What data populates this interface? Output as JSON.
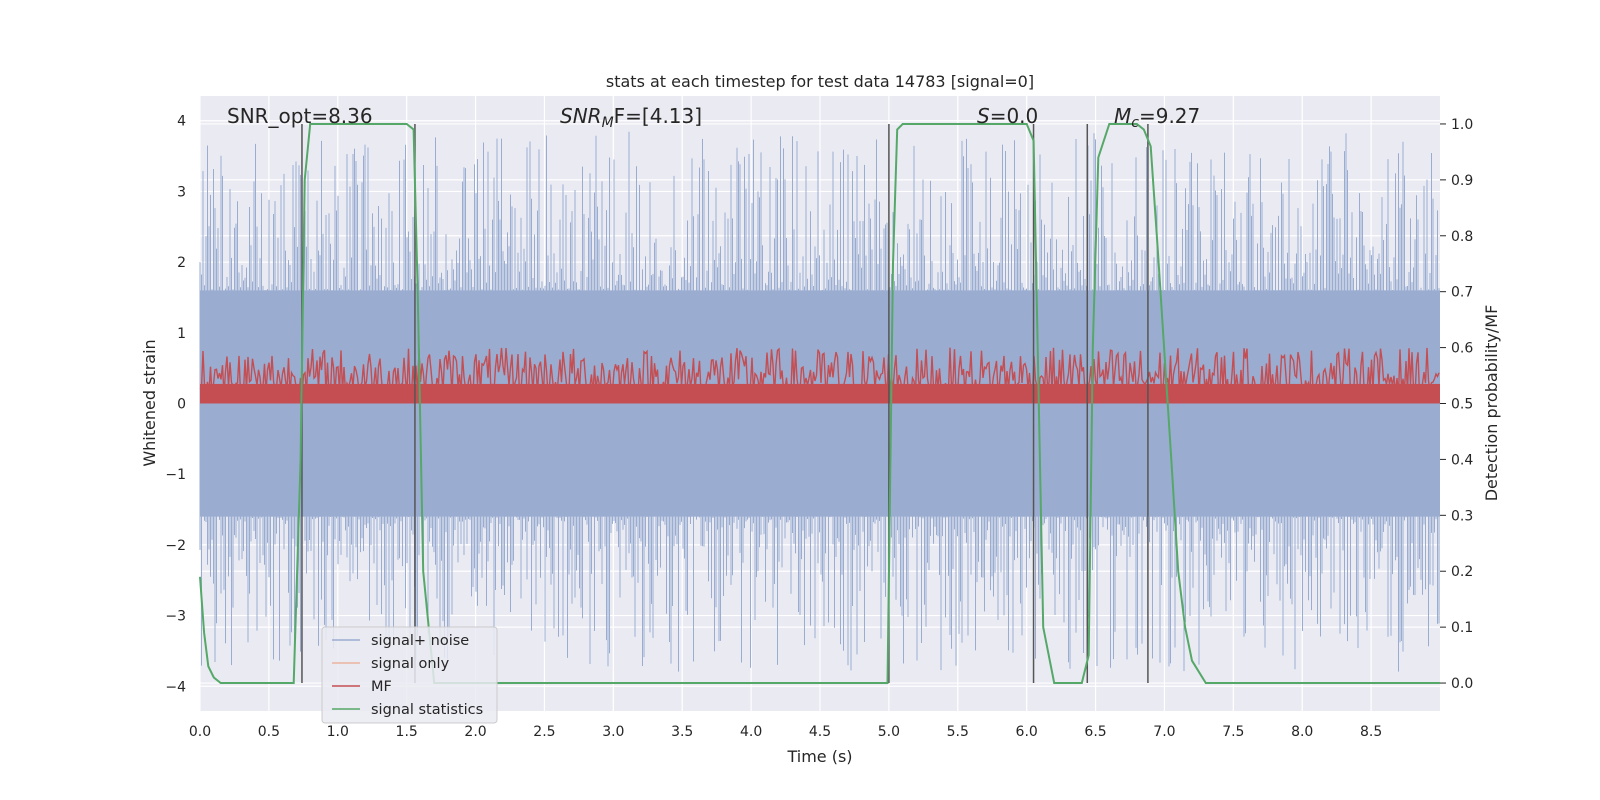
{
  "chart_data": {
    "type": "line",
    "title": "stats at each timestep for test data 14783 [signal=0]",
    "xlabel": "Time (s)",
    "ylabel": "Whitened strain",
    "y2label": "Detection probability/MF",
    "xlim": [
      0,
      9.0
    ],
    "ylim": [
      -4.35,
      4.35
    ],
    "y2lim": [
      -0.05,
      1.05
    ],
    "xticks": [
      0.0,
      0.5,
      1.0,
      1.5,
      2.0,
      2.5,
      3.0,
      3.5,
      4.0,
      4.5,
      5.0,
      5.5,
      6.0,
      6.5,
      7.0,
      7.5,
      8.0,
      8.5
    ],
    "xtick_labels": [
      "0.0",
      "0.5",
      "1.0",
      "1.5",
      "2.0",
      "2.5",
      "3.0",
      "3.5",
      "4.0",
      "4.5",
      "5.0",
      "5.5",
      "6.0",
      "6.5",
      "7.0",
      "7.5",
      "8.0",
      "8.5"
    ],
    "yticks": [
      -4,
      -3,
      -2,
      -1,
      0,
      1,
      2,
      3,
      4
    ],
    "ytick_labels": [
      "−4",
      "−3",
      "−2",
      "−1",
      "0",
      "1",
      "2",
      "3",
      "4"
    ],
    "y2ticks": [
      0.0,
      0.1,
      0.2,
      0.3,
      0.4,
      0.5,
      0.6,
      0.7,
      0.8,
      0.9,
      1.0
    ],
    "y2tick_labels": [
      "0.0",
      "0.1",
      "0.2",
      "0.3",
      "0.4",
      "0.5",
      "0.6",
      "0.7",
      "0.8",
      "0.9",
      "1.0"
    ],
    "grid": true,
    "annotations": {
      "snr_opt": "SNR_opt=8.36",
      "snr_mf_base": "SNR",
      "snr_mf_sub": "M",
      "snr_mf_rest": "F=[4.13]",
      "s_base": "S",
      "s_rest": "=0.0",
      "mc_base": "M",
      "mc_sub": "c",
      "mc_rest": "=9.27"
    },
    "vertical_markers": [
      0.74,
      1.56,
      5.0,
      6.05,
      6.44,
      6.88
    ],
    "series": [
      {
        "name": "signal+ noise",
        "axis": "left",
        "color": "#9aadd1",
        "band": {
          "core_low": -1.6,
          "core_high": 1.6,
          "peak_low": -3.8,
          "peak_high": 3.85
        }
      },
      {
        "name": "signal only",
        "axis": "left",
        "color": "#eab39c",
        "values_const": 0
      },
      {
        "name": "MF",
        "axis": "right",
        "color": "#c44e52",
        "band": {
          "base": 0.5,
          "high": 0.555,
          "peak": 0.6
        }
      },
      {
        "name": "signal statistics",
        "axis": "right",
        "color": "#55a868",
        "x": [
          0.0,
          0.03,
          0.06,
          0.1,
          0.15,
          0.2,
          0.3,
          0.5,
          0.68,
          0.73,
          0.76,
          0.8,
          0.9,
          1.2,
          1.5,
          1.55,
          1.58,
          1.62,
          1.7,
          2.0,
          3.0,
          4.0,
          4.9,
          4.99,
          5.03,
          5.06,
          5.1,
          5.3,
          5.6,
          5.9,
          6.0,
          6.05,
          6.08,
          6.12,
          6.2,
          6.25,
          6.4,
          6.45,
          6.48,
          6.52,
          6.6,
          6.7,
          6.8,
          6.85,
          6.9,
          6.95,
          7.05,
          7.1,
          7.15,
          7.2,
          7.3,
          7.5,
          8.0,
          8.5,
          9.0
        ],
        "y": [
          0.19,
          0.09,
          0.03,
          0.01,
          0.0,
          0.0,
          0.0,
          0.0,
          0.0,
          0.4,
          0.9,
          1.0,
          1.0,
          1.0,
          1.0,
          0.99,
          0.7,
          0.2,
          0.0,
          0.0,
          0.0,
          0.0,
          0.0,
          0.0,
          0.75,
          0.99,
          1.0,
          1.0,
          1.0,
          1.0,
          1.0,
          0.97,
          0.6,
          0.1,
          0.0,
          0.0,
          0.0,
          0.05,
          0.6,
          0.94,
          1.0,
          1.0,
          1.0,
          0.99,
          0.96,
          0.78,
          0.4,
          0.2,
          0.1,
          0.04,
          0.0,
          0.0,
          0.0,
          0.0,
          0.0
        ]
      }
    ],
    "legend": {
      "position": "lower-left",
      "entries": [
        "signal+ noise",
        "signal only",
        "MF",
        "signal statistics"
      ]
    }
  }
}
